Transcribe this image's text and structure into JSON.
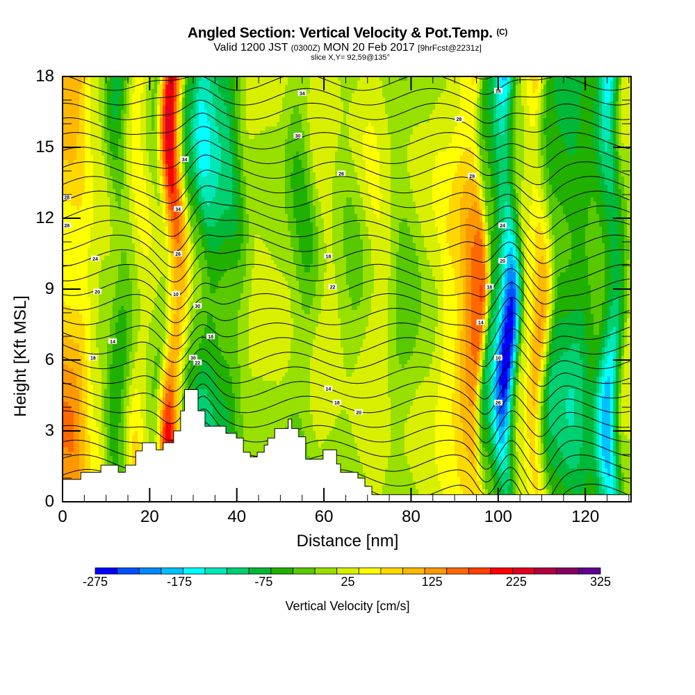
{
  "header": {
    "title": "Angled Section: Vertical Velocity & Pot.Temp.",
    "copyright": "(C)",
    "valid_prefix": "Valid 1200 JST",
    "valid_utc": "(0300Z)",
    "valid_date": "MON 20 Feb 2017",
    "forecast": "[9hrFcst@2231z]",
    "slice": "slice X,Y= 92,59@135°"
  },
  "chart_data": {
    "type": "heatmap",
    "title": "Angled Section: Vertical Velocity & Pot.Temp.",
    "xlabel": "Distance [nm]",
    "ylabel": "Height [Kft MSL]",
    "xlim": [
      0,
      130.5
    ],
    "ylim": [
      0,
      18
    ],
    "x_ticks": [
      "0",
      "20",
      "40",
      "60",
      "80",
      "100",
      "120"
    ],
    "y_ticks": [
      "0",
      "3",
      "6",
      "9",
      "12",
      "15",
      "18"
    ],
    "colorbar": {
      "label": "Vertical Velocity [cm/s]",
      "range": [
        -275,
        325
      ],
      "tick_labels": [
        "-275",
        "-175",
        "-75",
        "25",
        "125",
        "225",
        "325"
      ],
      "colors": [
        "#0000ff",
        "#0050ff",
        "#0088ff",
        "#00c0ff",
        "#00ffff",
        "#00e8b8",
        "#00d070",
        "#00b838",
        "#20b000",
        "#58c800",
        "#98e000",
        "#d8f000",
        "#ffff00",
        "#ffd800",
        "#ffb800",
        "#ff9800",
        "#ff6800",
        "#ff4000",
        "#ff0000",
        "#e00020",
        "#b00040",
        "#880060",
        "#600090"
      ]
    },
    "velocity_bands": [
      {
        "x": 3,
        "value": 120
      },
      {
        "x": 9,
        "value": 25
      },
      {
        "x": 13,
        "value": -60
      },
      {
        "x": 18,
        "value": 60
      },
      {
        "x": 22,
        "value": 0
      },
      {
        "x": 25.5,
        "value": 230
      },
      {
        "x": 30,
        "value": -60
      },
      {
        "x": 33,
        "value": -130
      },
      {
        "x": 38,
        "value": -90
      },
      {
        "x": 44,
        "value": 20
      },
      {
        "x": 50,
        "value": 10
      },
      {
        "x": 55,
        "value": -40
      },
      {
        "x": 60,
        "value": 30
      },
      {
        "x": 66,
        "value": -10
      },
      {
        "x": 72,
        "value": 40
      },
      {
        "x": 78,
        "value": -20
      },
      {
        "x": 84,
        "value": 20
      },
      {
        "x": 88,
        "value": 60
      },
      {
        "x": 95,
        "value": 160
      },
      {
        "x": 98,
        "value": -80
      },
      {
        "x": 102,
        "value": -250
      },
      {
        "x": 106,
        "value": 40
      },
      {
        "x": 109,
        "value": 110
      },
      {
        "x": 113,
        "value": -80
      },
      {
        "x": 118,
        "value": -100
      },
      {
        "x": 122,
        "value": -60
      },
      {
        "x": 126,
        "value": -170
      },
      {
        "x": 130,
        "value": 20
      }
    ],
    "terrain_kft": [
      {
        "x": 0,
        "h": 0.95
      },
      {
        "x": 4.2,
        "h": 1.25
      },
      {
        "x": 8.8,
        "h": 1.55
      },
      {
        "x": 12.8,
        "h": 1.25
      },
      {
        "x": 14.4,
        "h": 1.55
      },
      {
        "x": 16.8,
        "h": 2.15
      },
      {
        "x": 18.3,
        "h": 2.5
      },
      {
        "x": 21.5,
        "h": 2.2
      },
      {
        "x": 23.1,
        "h": 2.5
      },
      {
        "x": 25.5,
        "h": 3.0
      },
      {
        "x": 27.1,
        "h": 3.85
      },
      {
        "x": 28,
        "h": 4.75
      },
      {
        "x": 31.1,
        "h": 3.85
      },
      {
        "x": 32.7,
        "h": 3.2
      },
      {
        "x": 33.5,
        "h": 3.2
      },
      {
        "x": 37.5,
        "h": 2.9
      },
      {
        "x": 39.9,
        "h": 2.7
      },
      {
        "x": 41.5,
        "h": 2.1
      },
      {
        "x": 43.1,
        "h": 1.9
      },
      {
        "x": 44.7,
        "h": 2.1
      },
      {
        "x": 46.3,
        "h": 2.4
      },
      {
        "x": 47.1,
        "h": 2.7
      },
      {
        "x": 48.7,
        "h": 3.1
      },
      {
        "x": 51.8,
        "h": 3.5
      },
      {
        "x": 52.6,
        "h": 3.1
      },
      {
        "x": 54.2,
        "h": 2.75
      },
      {
        "x": 55.8,
        "h": 1.8
      },
      {
        "x": 59.8,
        "h": 2.2
      },
      {
        "x": 62.9,
        "h": 1.6
      },
      {
        "x": 63.8,
        "h": 1.25
      },
      {
        "x": 67.8,
        "h": 1.0
      },
      {
        "x": 69.4,
        "h": 0.65
      },
      {
        "x": 71,
        "h": 0.3
      },
      {
        "x": 130.5,
        "h": 0.3
      }
    ],
    "contour_labels": [
      "28",
      "28",
      "24",
      "20",
      "18",
      "14",
      "10",
      "26",
      "34",
      "34",
      "30",
      "30",
      "22",
      "18",
      "14",
      "18",
      "20",
      "34",
      "30",
      "26",
      "22",
      "18",
      "14"
    ]
  }
}
